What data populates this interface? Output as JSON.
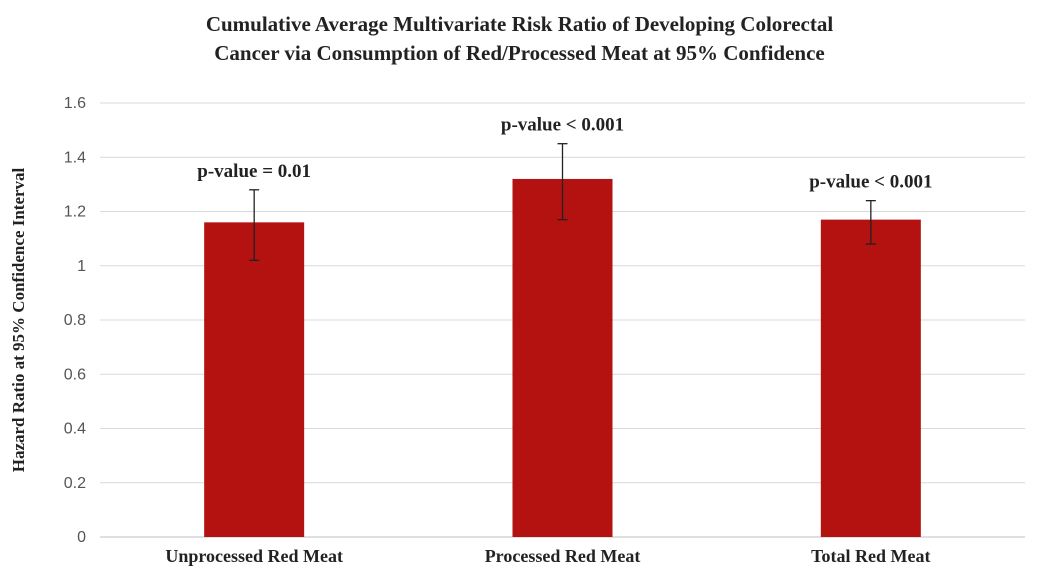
{
  "chart_data": {
    "type": "bar",
    "title_lines": [
      "Cumulative Average Multivariate Risk Ratio of Developing Colorectal",
      "Cancer via Consumption of Red/Processed Meat at 95% Confidence"
    ],
    "ylabel": "Hazard Ratio at 95% Confidence Interval",
    "xlabel": "",
    "ylim": [
      0,
      1.6
    ],
    "yticks": [
      "0",
      "0.2",
      "0.4",
      "0.6",
      "0.8",
      "1",
      "1.2",
      "1.4",
      "1.6"
    ],
    "categories": [
      "Unprocessed Red Meat",
      "Processed Red Meat",
      "Total Red Meat"
    ],
    "values": [
      1.16,
      1.32,
      1.17
    ],
    "error_low": [
      1.02,
      1.17,
      1.08
    ],
    "error_high": [
      1.28,
      1.45,
      1.24
    ],
    "annotations": [
      "p-value = 0.01",
      "p-value < 0.001",
      "p-value < 0.001"
    ],
    "bar_color": "#b31210",
    "grid": true,
    "legend": "none"
  }
}
